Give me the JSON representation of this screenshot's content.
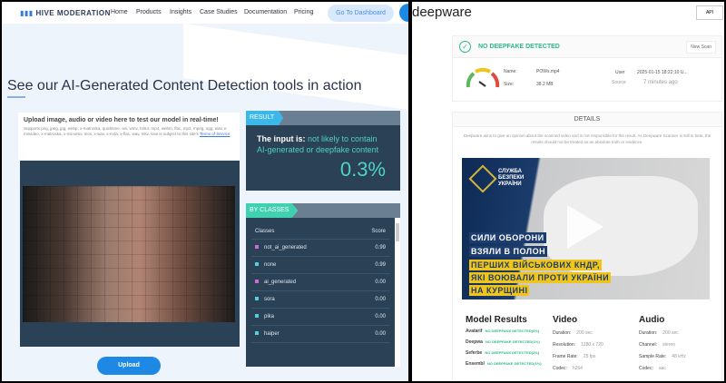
{
  "hive": {
    "logo": "HIVE MODERATION",
    "nav": [
      "Home",
      "Products",
      "Insights",
      "Case Studies",
      "Documentation",
      "Pricing"
    ],
    "dashboard": "Go To Dashboard",
    "title": "See our AI-Generated Content Detection tools in action",
    "upload_title": "Upload image, audio or video here to test our model in real-time!",
    "upload_sub": "Supports png, jpeg, jpg, webp, x-matroska, quicktime, avi, wmv, h264, mp4, webm, flac, mp3, mpeg, ogg, wav, x-msvideo, x-matroska, x-ms-wmv, mov, x-wav, x-m4a, x-flac, wav, mkv. Use is subject to this site's",
    "terms": "Terms of Service",
    "upload_button": "Upload",
    "result_tag": "RESULT",
    "result_prefix": "The input is:",
    "result_text": "not likely to contain AI-generated or deepfake content",
    "result_pct": "0.3%",
    "classes_tag": "BY CLASSES",
    "col_class": "Classes",
    "col_score": "Score",
    "classes": [
      {
        "name": "not_ai_generated",
        "score": "0.99",
        "color": "#c86dd7"
      },
      {
        "name": "none",
        "score": "0.99",
        "color": "#4fd1e0"
      },
      {
        "name": "ai_generated",
        "score": "0.00",
        "color": "#c86dd7"
      },
      {
        "name": "sora",
        "score": "0.00",
        "color": "#4fd1e0"
      },
      {
        "name": "pika",
        "score": "0.00",
        "color": "#4fd1e0"
      },
      {
        "name": "haiper",
        "score": "0.00",
        "color": "#4fd1e0"
      }
    ]
  },
  "deepware": {
    "logo": "deepware",
    "api": "API",
    "status": "NO DEEPFAKE DETECTED",
    "new_scan": "New Scan",
    "name_label": "Name:",
    "name": "POWs.mp4",
    "size_label": "Size:",
    "size": "38.2 MB",
    "user_label": "User",
    "user": "2025-01-15 18:22:10 U...",
    "source_label": "Source",
    "source": "7 minutes ago",
    "details": "DETAILS",
    "disclaimer": "Deepware aims to give an opinion about the scanned video and is not responsible for the result. As Deepware Scanner is still in beta, the results should not be treated as an absolute truth or evidence.",
    "video_org": "СЛУЖБА БЕЗПЕКИ УКРАЇНИ",
    "captions": [
      "СИЛИ ОБОРОНИ",
      "ВЗЯЛИ В ПОЛОН",
      "ПЕРШИХ ВІЙСЬКОВИХ КНДР,",
      "ЯКІ ВОЮВАЛИ ПРОТИ УКРАЇНИ",
      "НА КУРЩИНІ"
    ],
    "model_results_title": "Model Results",
    "models": [
      {
        "name": "Avatarif",
        "result": "NO DEEPFAKE DETECTED(0%)"
      },
      {
        "name": "Deepwa",
        "result": "NO DEEPFAKE DETECTED(1%)"
      },
      {
        "name": "Seferbe",
        "result": "NO DEEPFAKE DETECTED(2%)"
      },
      {
        "name": "Ensembl",
        "result": "NO DEEPFAKE DETECTED(1%)"
      }
    ],
    "video_title": "Video",
    "video": [
      {
        "k": "Duration:",
        "v": "200 sec"
      },
      {
        "k": "Resolution:",
        "v": "1280 x 720"
      },
      {
        "k": "Frame Rate:",
        "v": "25 fps"
      },
      {
        "k": "Codec:",
        "v": "h264"
      }
    ],
    "audio_title": "Audio",
    "audio": [
      {
        "k": "Duration:",
        "v": "200 sec"
      },
      {
        "k": "Channel:",
        "v": "stereo"
      },
      {
        "k": "Sample Rate:",
        "v": "48 kHz"
      },
      {
        "k": "Codec:",
        "v": "aac"
      }
    ]
  }
}
